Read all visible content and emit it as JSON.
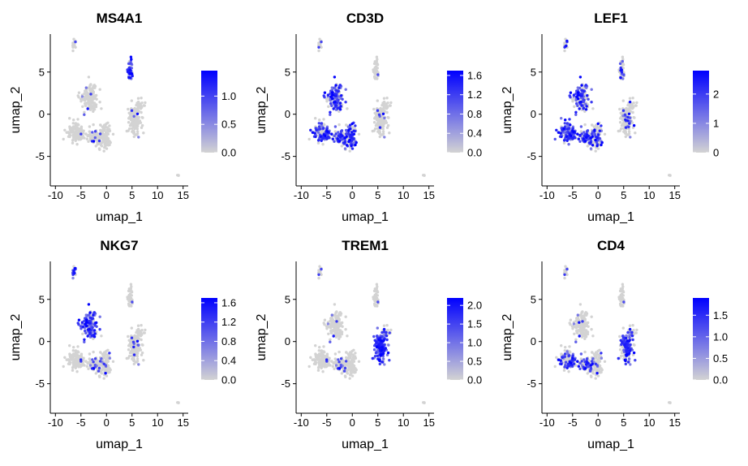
{
  "chart_data": [
    {
      "type": "scatter",
      "title": "MS4A1",
      "xlabel": "umap_1",
      "ylabel": "umap_2",
      "xlim": [
        -11,
        16
      ],
      "ylim": [
        -8.5,
        9.5
      ],
      "xticks": [
        -10,
        -5,
        0,
        5,
        10,
        15
      ],
      "yticks": [
        -5,
        0,
        5
      ],
      "grid": false,
      "legend": {
        "placement": "right",
        "range": [
          0,
          1.45
        ],
        "ticks": [
          0.0,
          0.5,
          1.0
        ],
        "tick_labels": [
          "0.0",
          "0.5",
          "1.0"
        ],
        "low_color": "#d3d3d3",
        "high_color": "#0000ff"
      },
      "expression": {
        "cluster0": 0.02,
        "cluster1": 0.02,
        "cluster2": 0.85,
        "cluster3": 0.02,
        "cluster4": 0.0,
        "cluster5": 0.02,
        "cluster6": 0.01,
        "cluster7": 0.05,
        "cluster8": 0.0
      }
    },
    {
      "type": "scatter",
      "title": "CD3D",
      "xlabel": "umap_1",
      "ylabel": "umap_2",
      "xlim": [
        -11,
        16
      ],
      "ylim": [
        -8.5,
        9.5
      ],
      "xticks": [
        -10,
        -5,
        0,
        5,
        10,
        15
      ],
      "yticks": [
        -5,
        0,
        5
      ],
      "grid": false,
      "legend": {
        "placement": "right",
        "range": [
          0,
          1.7
        ],
        "ticks": [
          0.0,
          0.4,
          0.8,
          1.2,
          1.6
        ],
        "tick_labels": [
          "0.0",
          "0.4",
          "0.8",
          "1.2",
          "1.6"
        ],
        "low_color": "#d3d3d3",
        "high_color": "#0000ff"
      },
      "expression": {
        "cluster0": 0.55,
        "cluster1": 0.55,
        "cluster2": 0.02,
        "cluster3": 0.03,
        "cluster4": 0.0,
        "cluster5": 0.55,
        "cluster6": 0.02,
        "cluster7": 0.5,
        "cluster8": 0.0
      }
    },
    {
      "type": "scatter",
      "title": "LEF1",
      "xlabel": "umap_1",
      "ylabel": "umap_2",
      "xlim": [
        -11,
        16
      ],
      "ylim": [
        -8.5,
        9.5
      ],
      "xticks": [
        -10,
        -5,
        0,
        5,
        10,
        15
      ],
      "yticks": [
        -5,
        0,
        5
      ],
      "grid": false,
      "legend": {
        "placement": "right",
        "range": [
          0,
          2.8
        ],
        "ticks": [
          0,
          1,
          2
        ],
        "tick_labels": [
          "0",
          "1",
          "2"
        ],
        "low_color": "#d3d3d3",
        "high_color": "#0000ff"
      },
      "expression": {
        "cluster0": 0.45,
        "cluster1": 0.75,
        "cluster2": 0.25,
        "cluster3": 0.1,
        "cluster4": 0.05,
        "cluster5": 0.3,
        "cluster6": 0.35,
        "cluster7": 0.6,
        "cluster8": 0.05
      }
    },
    {
      "type": "scatter",
      "title": "NKG7",
      "xlabel": "umap_1",
      "ylabel": "umap_2",
      "xlim": [
        -11,
        16
      ],
      "ylim": [
        -8.5,
        9.5
      ],
      "xticks": [
        -10,
        -5,
        0,
        5,
        10,
        15
      ],
      "yticks": [
        -5,
        0,
        5
      ],
      "grid": false,
      "legend": {
        "placement": "right",
        "range": [
          0,
          1.7
        ],
        "ticks": [
          0.0,
          0.4,
          0.8,
          1.2,
          1.6
        ],
        "tick_labels": [
          "0.0",
          "0.4",
          "0.8",
          "1.2",
          "1.6"
        ],
        "low_color": "#d3d3d3",
        "high_color": "#0000ff"
      },
      "expression": {
        "cluster0": 0.6,
        "cluster1": 0.04,
        "cluster2": 0.02,
        "cluster3": 0.05,
        "cluster4": 0.0,
        "cluster5": 0.1,
        "cluster6": 0.7,
        "cluster7": 0.1,
        "cluster8": 0.0
      }
    },
    {
      "type": "scatter",
      "title": "TREM1",
      "xlabel": "umap_1",
      "ylabel": "umap_2",
      "xlim": [
        -11,
        16
      ],
      "ylim": [
        -8.5,
        9.5
      ],
      "xticks": [
        -10,
        -5,
        0,
        5,
        10,
        15
      ],
      "yticks": [
        -5,
        0,
        5
      ],
      "grid": false,
      "legend": {
        "placement": "right",
        "range": [
          0,
          2.2
        ],
        "ticks": [
          0.0,
          0.5,
          1.0,
          1.5,
          2.0
        ],
        "tick_labels": [
          "0.0",
          "0.5",
          "1.0",
          "1.5",
          "2.0"
        ],
        "low_color": "#d3d3d3",
        "high_color": "#0000ff"
      },
      "expression": {
        "cluster0": 0.02,
        "cluster1": 0.05,
        "cluster2": 0.03,
        "cluster3": 0.85,
        "cluster4": 0.3,
        "cluster5": 0.03,
        "cluster6": 0.02,
        "cluster7": 0.1,
        "cluster8": 0.0
      }
    },
    {
      "type": "scatter",
      "title": "CD4",
      "xlabel": "umap_1",
      "ylabel": "umap_2",
      "xlim": [
        -11,
        16
      ],
      "ylim": [
        -8.5,
        9.5
      ],
      "xticks": [
        -10,
        -5,
        0,
        5,
        10,
        15
      ],
      "yticks": [
        -5,
        0,
        5
      ],
      "grid": false,
      "legend": {
        "placement": "right",
        "range": [
          0,
          1.9
        ],
        "ticks": [
          0.0,
          0.5,
          1.0,
          1.5
        ],
        "tick_labels": [
          "0.0",
          "0.5",
          "1.0",
          "1.5"
        ],
        "low_color": "#d3d3d3",
        "high_color": "#0000ff"
      },
      "expression": {
        "cluster0": 0.05,
        "cluster1": 0.4,
        "cluster2": 0.02,
        "cluster3": 0.45,
        "cluster4": 0.1,
        "cluster5": 0.1,
        "cluster6": 0.02,
        "cluster7": 0.35,
        "cluster8": 0.0
      }
    }
  ],
  "clusters": [
    {
      "id": "cluster0",
      "cx": -3.3,
      "cy": 1.8,
      "sx": 1.3,
      "sy": 1.4,
      "n": 150
    },
    {
      "id": "cluster1",
      "cx": -5.8,
      "cy": -2.2,
      "sx": 1.5,
      "sy": 0.9,
      "n": 130
    },
    {
      "id": "cluster2",
      "cx": 4.6,
      "cy": 5.3,
      "sx": 0.35,
      "sy": 1.0,
      "n": 45
    },
    {
      "id": "cluster3",
      "cx": 5.6,
      "cy": -0.6,
      "sx": 1.0,
      "sy": 1.5,
      "n": 200
    },
    {
      "id": "cluster4",
      "cx": 6.6,
      "cy": 1.0,
      "sx": 0.9,
      "sy": 0.6,
      "n": 20
    },
    {
      "id": "cluster5",
      "cx": -0.3,
      "cy": -2.6,
      "sx": 0.9,
      "sy": 1.3,
      "n": 110
    },
    {
      "id": "cluster6",
      "cx": -6.3,
      "cy": 8.2,
      "sx": 0.4,
      "sy": 0.45,
      "n": 14
    },
    {
      "id": "cluster7",
      "cx": -2.2,
      "cy": -2.8,
      "sx": 1.0,
      "sy": 0.6,
      "n": 80
    },
    {
      "id": "cluster8",
      "cx": 14.0,
      "cy": -7.3,
      "sx": 0.12,
      "sy": 0.12,
      "n": 3
    }
  ]
}
